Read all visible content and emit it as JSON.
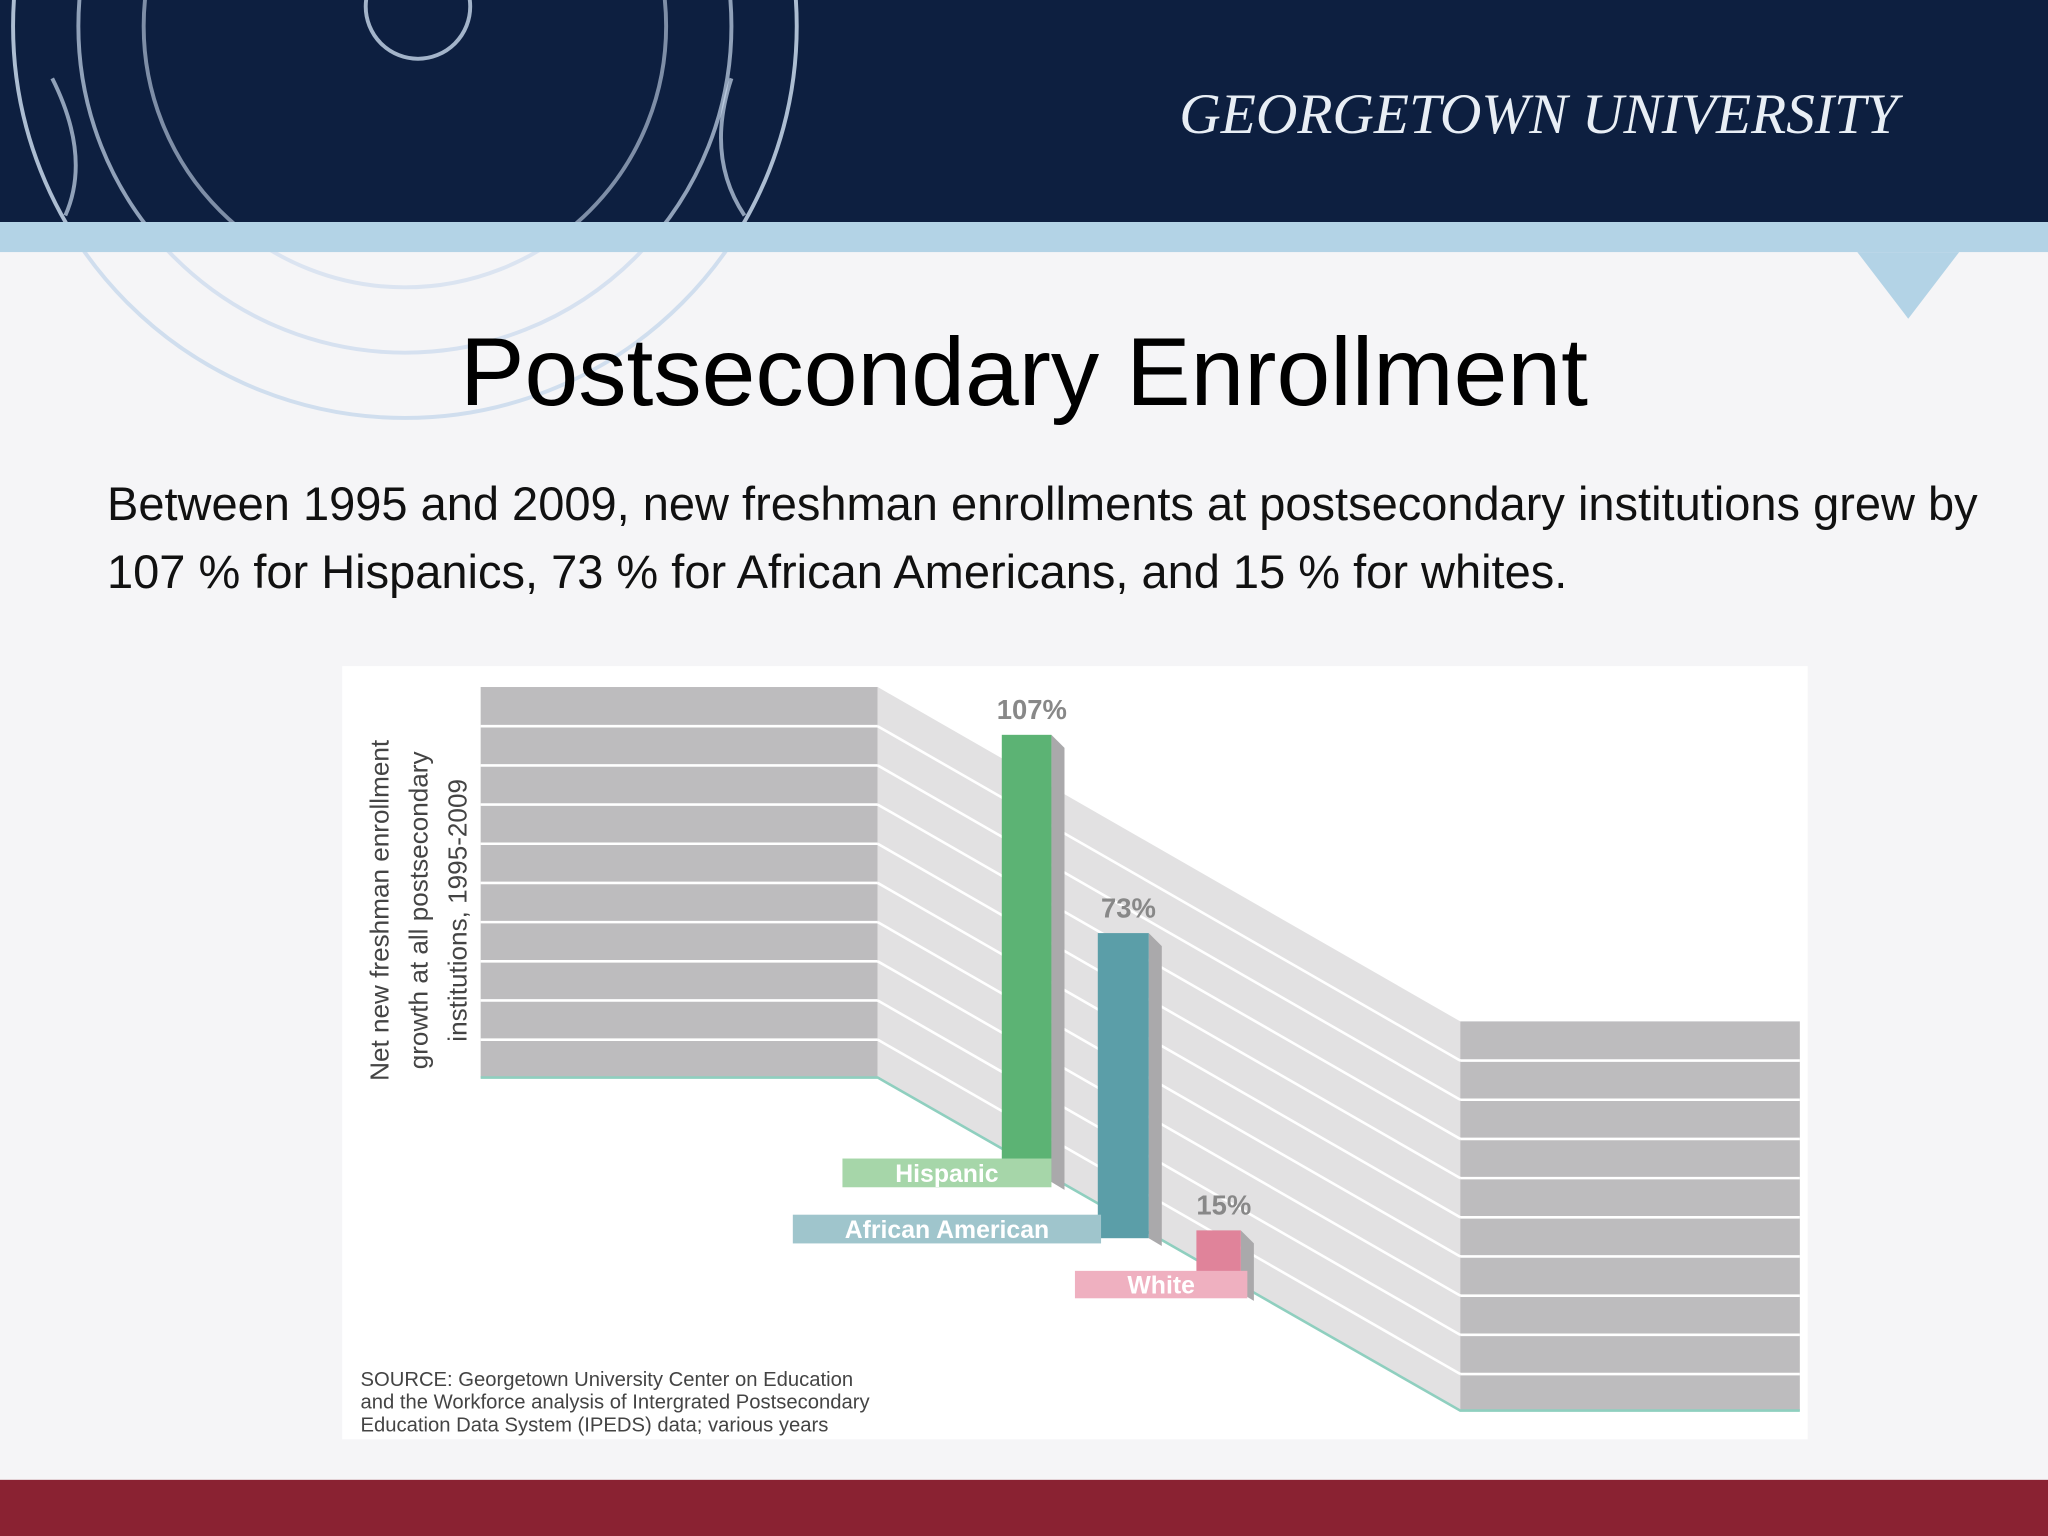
{
  "header": {
    "brand": "GEORGETOWN UNIVERSITY"
  },
  "title": "Postsecondary Enrollment",
  "body": "Between 1995 and 2009, new freshman enrollments at postsecondary institutions grew by 107 % for Hispanics, 73 % for African Americans, and 15 % for whites.",
  "chart_data": {
    "type": "bar",
    "y_label": [
      "Net new freshman enrollment",
      "growth at all postsecondary",
      "institutions, 1995-2009"
    ],
    "categories": [
      "Hispanic",
      "African American",
      "White"
    ],
    "values": [
      107,
      73,
      15
    ],
    "value_labels": [
      "107%",
      "73%",
      "15%"
    ],
    "colors": [
      "#5cb374",
      "#5b9ea8",
      "#e0839a"
    ],
    "label_colors": [
      "#a6d6a9",
      "#9fc5cc",
      "#efb0c0"
    ],
    "source": [
      "SOURCE: Georgetown University Center on Education",
      "and the Workforce analysis of Intergrated Postsecondary",
      "Education Data System (IPEDS) data; various years"
    ]
  }
}
